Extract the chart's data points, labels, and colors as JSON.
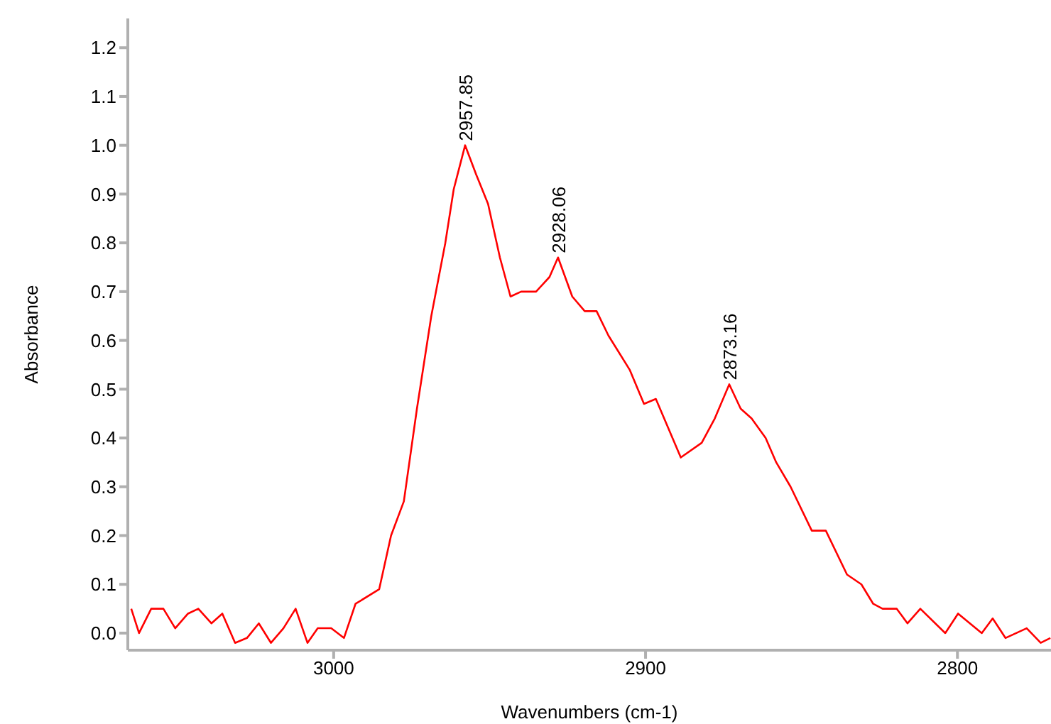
{
  "chart_data": {
    "type": "line",
    "xlabel": "Wavenumbers (cm-1)",
    "ylabel": "Absorbance",
    "xlim": [
      3066,
      2770
    ],
    "xticks": [
      3000,
      2900,
      2800
    ],
    "ylim": [
      -0.035,
      1.26
    ],
    "yticks": [
      {
        "value": 0,
        "label": "0.0"
      },
      0.1,
      0.2,
      0.3,
      0.4,
      0.5,
      0.6,
      0.7,
      0.8,
      0.9,
      {
        "value": 1,
        "label": "1.0"
      },
      1.1,
      1.2
    ],
    "grid": false,
    "marker": "none",
    "line_style": "solid",
    "series": [
      {
        "color": "#ff0000",
        "x": [
          3064.9,
          3062.4,
          3058.5,
          3054.6,
          3050.8,
          3046.7,
          3043.4,
          3039.2,
          3035.7,
          3031.6,
          3027.8,
          3024.0,
          3020.1,
          3016.1,
          3012.2,
          3008.4,
          3005.1,
          3000.8,
          2996.7,
          2993.0,
          2985.4,
          2981.6,
          2977.5,
          2973.3,
          2968.7,
          2964.2,
          2961.5,
          2957.85,
          2954.3,
          2950.5,
          2946.7,
          2943.3,
          2939.9,
          2935.1,
          2930.8,
          2928.06,
          2923.5,
          2919.5,
          2915.7,
          2911.9,
          2905.1,
          2900.5,
          2896.7,
          2888.7,
          2882.0,
          2877.8,
          2873.16,
          2869.5,
          2866.0,
          2861.5,
          2858.1,
          2853.5,
          2846.7,
          2842.2,
          2835.4,
          2830.8,
          2827.0,
          2824.0,
          2819.5,
          2816.0,
          2811.9,
          2803.9,
          2799.8,
          2796.0,
          2792.2,
          2788.7,
          2784.6,
          2777.8,
          2773.3,
          2770.2
        ],
        "values": [
          0.05,
          0.0,
          0.05,
          0.05,
          0.01,
          0.04,
          0.05,
          0.02,
          0.04,
          -0.02,
          -0.01,
          0.02,
          -0.02,
          0.01,
          0.05,
          -0.02,
          0.01,
          0.01,
          -0.01,
          0.06,
          0.09,
          0.2,
          0.27,
          0.46,
          0.65,
          0.8,
          0.91,
          1.0,
          0.94,
          0.88,
          0.77,
          0.69,
          0.7,
          0.7,
          0.73,
          0.77,
          0.69,
          0.66,
          0.66,
          0.61,
          0.54,
          0.47,
          0.48,
          0.36,
          0.39,
          0.44,
          0.51,
          0.46,
          0.44,
          0.4,
          0.35,
          0.3,
          0.21,
          0.21,
          0.12,
          0.1,
          0.06,
          0.05,
          0.05,
          0.02,
          0.05,
          0.0,
          0.04,
          0.02,
          0.0,
          0.03,
          -0.01,
          0.01,
          -0.02,
          -0.01
        ]
      }
    ],
    "annotations": [
      {
        "text": "2957.85",
        "x": 2957.85,
        "y": 1.0
      },
      {
        "text": "2928.06",
        "x": 2928.06,
        "y": 0.77
      },
      {
        "text": "2873.16",
        "x": 2873.16,
        "y": 0.51
      }
    ]
  }
}
